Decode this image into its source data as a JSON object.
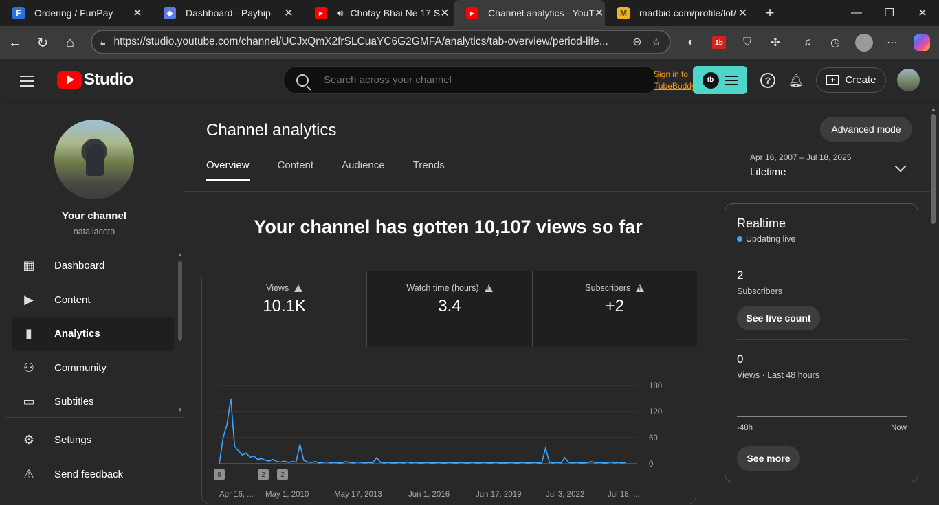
{
  "browser": {
    "tabs": [
      {
        "title": "Ordering / FunPay",
        "fav": "F",
        "color": "#2f6fde"
      },
      {
        "title": "Dashboard - Payhip",
        "fav": "◆",
        "color": "#5b7be0"
      },
      {
        "title": "Chotay Bhai Ne 17 S",
        "fav": "▶",
        "color": "#ff0000"
      },
      {
        "title": "Channel analytics - YouT",
        "fav": "▶",
        "color": "#ff0000"
      },
      {
        "title": "madbid.com/profile/lot/",
        "fav": "M",
        "color": "#f2b41b"
      }
    ],
    "url": "https://studio.youtube.com/channel/UCJxQmX2frSLCuaYC6G2GMFA/analytics/tab-overview/period-life..."
  },
  "topbar": {
    "logo_text": "Studio",
    "search_placeholder": "Search across your channel",
    "tubebuddy_link_1": "Sign in to",
    "tubebuddy_link_2": "TubeBuddy",
    "tubebuddy_badge": "tb",
    "create_label": "Create"
  },
  "sidebar": {
    "channel_title": "Your channel",
    "channel_handle": "nataliacoto",
    "items": [
      {
        "label": "Dashboard"
      },
      {
        "label": "Content"
      },
      {
        "label": "Analytics"
      },
      {
        "label": "Community"
      },
      {
        "label": "Subtitles"
      }
    ],
    "bottom_items": [
      {
        "label": "Settings"
      },
      {
        "label": "Send feedback"
      }
    ]
  },
  "main": {
    "title": "Channel analytics",
    "advanced_mode": "Advanced mode",
    "tabs": [
      {
        "label": "Overview"
      },
      {
        "label": "Content"
      },
      {
        "label": "Audience"
      },
      {
        "label": "Trends"
      }
    ],
    "period_range": "Apr 16, 2007 – Jul 18, 2025",
    "period_name": "Lifetime",
    "headline": "Your channel has gotten 10,107 views so far",
    "metrics": [
      {
        "label": "Views",
        "value": "10.1K"
      },
      {
        "label": "Watch time (hours)",
        "value": "3.4"
      },
      {
        "label": "Subscribers",
        "value": "+2"
      }
    ]
  },
  "chart_data": {
    "type": "line",
    "y_ticks": [
      "180",
      "120",
      "60",
      "0"
    ],
    "ylim": [
      0,
      180
    ],
    "x_tick_labels": [
      "Apr 16, ...",
      "May 1, 2010",
      "May 17, 2013",
      "Jun 1, 2016",
      "Jun 17, 2019",
      "Jul 3, 2022",
      "Jul 18, ..."
    ],
    "markers": [
      "8",
      "2",
      "2"
    ],
    "series": [
      {
        "values": [
          0,
          60,
          90,
          150,
          40,
          30,
          20,
          25,
          15,
          18,
          10,
          12,
          8,
          6,
          10,
          5,
          4,
          6,
          3,
          5,
          4,
          45,
          8,
          4,
          3,
          5,
          2,
          3,
          4,
          2,
          3,
          2,
          2,
          5,
          3,
          2,
          4,
          3,
          2,
          3,
          2,
          14,
          3,
          2,
          3,
          2,
          2,
          3,
          2,
          4,
          2,
          3,
          2,
          2,
          3,
          2,
          2,
          3,
          2,
          2,
          3,
          2,
          2,
          3,
          2,
          2,
          3,
          2,
          2,
          3,
          2,
          2,
          3,
          2,
          2,
          2,
          3,
          2,
          2,
          3,
          2,
          2,
          3,
          2,
          2,
          36,
          3,
          2,
          3,
          2,
          14,
          3,
          2,
          3,
          2,
          2,
          3,
          5,
          2,
          3,
          2,
          2,
          4,
          2,
          3,
          2,
          3
        ],
        "color": "#3ea6ff"
      }
    ]
  },
  "realtime": {
    "title": "Realtime",
    "status": "Updating live",
    "subs_value": "2",
    "subs_label": "Subscribers",
    "live_count_btn": "See live count",
    "views_value": "0",
    "views_label": "Views · Last 48 hours",
    "axis_left": "-48h",
    "axis_right": "Now",
    "see_more": "See more"
  }
}
